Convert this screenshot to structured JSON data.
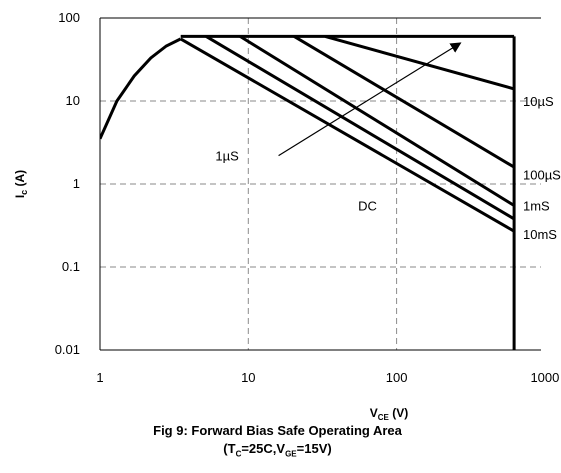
{
  "chart_data": {
    "type": "line",
    "title": "Fig 9: Forward Bias Safe Operating Area",
    "subtitle": "(T_C=25C,V_GE=15V)",
    "subtitle_parts": [
      "(T",
      "C",
      "=25C,V",
      "GE",
      "=15V)"
    ],
    "xlabel": "V_CE (V)",
    "xlabel_parts": [
      "V",
      "CE",
      " (V)"
    ],
    "ylabel": "I_c (A)",
    "ylabel_parts": [
      "I",
      "c",
      " (A)"
    ],
    "x_scale": "log",
    "y_scale": "log",
    "xlim": [
      1,
      1000
    ],
    "ylim": [
      0.01,
      100
    ],
    "x_ticks": [
      1,
      10,
      100,
      1000
    ],
    "x_tick_labels": [
      "1",
      "10",
      "100",
      "1000"
    ],
    "y_ticks": [
      0.01,
      0.1,
      1,
      10,
      100
    ],
    "y_tick_labels": [
      "0.01",
      "0.1",
      "1",
      "10",
      "100"
    ],
    "grid": true,
    "legend": "none",
    "series": [
      {
        "name": "1µS",
        "x": [
          1,
          1.3,
          1.7,
          2.2,
          2.8,
          3.5
        ],
        "y": [
          3.5,
          10,
          20,
          33,
          46,
          56
        ]
      },
      {
        "name": "10µS",
        "x": [
          3.5,
          8.8,
          20.4,
          33,
          620
        ],
        "y": [
          60,
          60,
          60,
          60,
          60
        ]
      },
      {
        "name": "10µS",
        "x": [
          33,
          620
        ],
        "y": [
          60,
          14
        ]
      },
      {
        "name": "100µS",
        "x": [
          20.4,
          620
        ],
        "y": [
          60,
          1.6
        ]
      },
      {
        "name": "1mS",
        "x": [
          8.8,
          620
        ],
        "y": [
          60,
          0.55
        ]
      },
      {
        "name": "10mS",
        "x": [
          5.2,
          620
        ],
        "y": [
          60,
          0.38
        ]
      },
      {
        "name": "DC",
        "x": [
          3.5,
          620
        ],
        "y": [
          56,
          0.27
        ]
      },
      {
        "name": "DC",
        "x": [
          620,
          620
        ],
        "y": [
          60,
          0.01
        ]
      }
    ],
    "annotations": {
      "curve_labels": [
        {
          "text": "10µS",
          "x": 1000,
          "y": 10
        },
        {
          "text": "100µS",
          "x": 1000,
          "y": 1.3
        },
        {
          "text": "1mS",
          "x": 1000,
          "y": 0.55
        },
        {
          "text": "10mS",
          "x": 1000,
          "y": 0.25
        },
        {
          "text": "1µS",
          "x": 6,
          "y": 2.2
        },
        {
          "text": "DC",
          "x": 55,
          "y": 0.55
        }
      ],
      "arrow": {
        "from": [
          16,
          2.2
        ],
        "to": [
          270,
          50
        ]
      }
    }
  }
}
